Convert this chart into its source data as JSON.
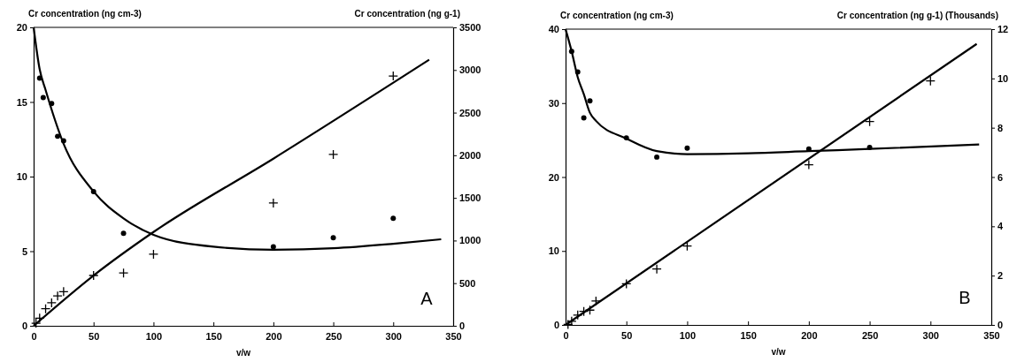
{
  "chart_data": [
    {
      "type": "scatter",
      "xlabel": "v/w",
      "ylabel": "Cr concentration (ng cm-3)",
      "y2label": "Cr concentration (ng g-1)",
      "annotations": [
        "A"
      ],
      "xlim": [
        0,
        350
      ],
      "xticks": [
        0,
        50,
        100,
        150,
        200,
        250,
        300,
        350
      ],
      "ylim": [
        0,
        20
      ],
      "yticks": [
        0,
        5,
        10,
        15,
        20
      ],
      "y2lim": [
        0,
        3500
      ],
      "y2ticks": [
        0,
        500,
        1000,
        1500,
        2000,
        2500,
        3000,
        3500
      ],
      "series": [
        {
          "type": "scatter",
          "marker": "circle",
          "color": "#000000",
          "x": [
            5,
            8,
            15,
            20,
            25,
            50,
            75,
            100,
            200,
            250,
            300
          ],
          "values": [
            16.6,
            15.3,
            14.9,
            12.7,
            12.4,
            9.0,
            6.2,
            null,
            5.3,
            5.9,
            7.2
          ]
        },
        {
          "type": "line",
          "color": "#000000",
          "x": [
            0,
            5,
            10,
            25,
            50,
            75,
            100,
            150,
            200,
            250,
            300,
            340
          ],
          "values": [
            20,
            17.2,
            15.8,
            12.2,
            9.0,
            7.2,
            6.1,
            5.3,
            5.1,
            5.2,
            5.5,
            5.8
          ]
        },
        {
          "type": "scatter",
          "marker": "cross",
          "axis": "y2",
          "color": "#000000",
          "x": [
            2,
            5,
            10,
            15,
            20,
            25,
            50,
            75,
            100,
            200,
            250,
            300
          ],
          "values": [
            30,
            90,
            200,
            270,
            350,
            400,
            590,
            620,
            840,
            1440,
            2010,
            2930
          ]
        },
        {
          "type": "line",
          "axis": "y2",
          "color": "#000000",
          "x": [
            0,
            50,
            100,
            200,
            330
          ],
          "values": [
            0,
            590,
            1100,
            1960,
            3120
          ]
        }
      ]
    },
    {
      "type": "scatter",
      "xlabel": "v/w",
      "ylabel": "Cr concentration (ng cm-3)",
      "y2label": "Cr concentration (ng g-1) (Thousands)",
      "annotations": [
        "B"
      ],
      "xlim": [
        0,
        350
      ],
      "xticks": [
        0,
        50,
        100,
        150,
        200,
        250,
        300,
        350
      ],
      "ylim": [
        0,
        40
      ],
      "yticks": [
        0,
        10,
        20,
        30,
        40
      ],
      "y2lim": [
        0,
        12
      ],
      "y2ticks": [
        0,
        2,
        4,
        6,
        8,
        10,
        12
      ],
      "series": [
        {
          "type": "scatter",
          "marker": "circle",
          "color": "#000000",
          "x": [
            5,
            10,
            15,
            20,
            50,
            75,
            100,
            200,
            250
          ],
          "values": [
            37.0,
            34.2,
            28.0,
            30.3,
            25.3,
            22.7,
            23.9,
            23.8,
            24.0
          ]
        },
        {
          "type": "line",
          "color": "#000000",
          "x": [
            0,
            5,
            10,
            15,
            20,
            25,
            50,
            75,
            100,
            150,
            200,
            250,
            340
          ],
          "values": [
            40,
            37,
            33.5,
            31.2,
            28.7,
            27.6,
            25.2,
            23.5,
            23.1,
            23.2,
            23.5,
            23.8,
            24.4
          ]
        },
        {
          "type": "scatter",
          "marker": "cross",
          "axis": "y2",
          "color": "#000000",
          "x": [
            2,
            5,
            10,
            15,
            20,
            25,
            50,
            75,
            100,
            200,
            250,
            300
          ],
          "values": [
            0.02,
            0.15,
            0.4,
            0.55,
            0.6,
            0.97,
            1.67,
            2.27,
            3.2,
            6.5,
            8.25,
            9.9
          ]
        },
        {
          "type": "line",
          "axis": "y2",
          "color": "#000000",
          "x": [
            0,
            338
          ],
          "values": [
            0,
            11.4
          ]
        }
      ]
    }
  ]
}
